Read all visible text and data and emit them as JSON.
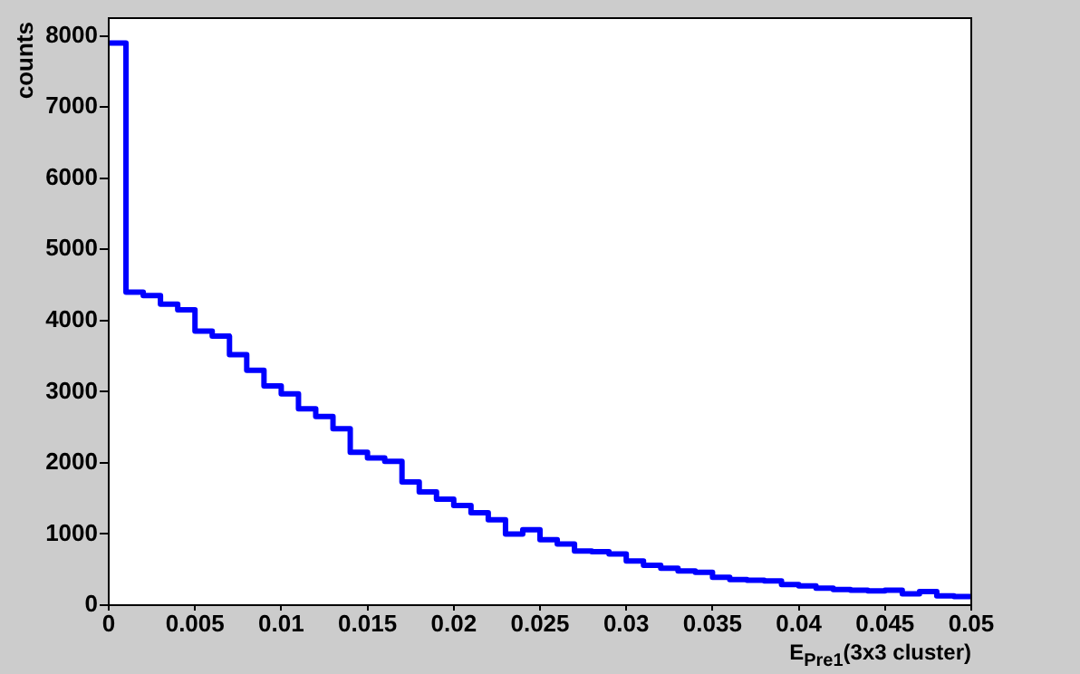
{
  "chart_data": {
    "type": "histogram",
    "xlabel": "E$_{Pre1}$(3x3 cluster)",
    "ylabel": "counts",
    "bins": [
      0,
      0.001,
      0.002,
      0.003,
      0.004,
      0.005,
      0.006,
      0.007,
      0.008,
      0.009,
      0.01,
      0.011,
      0.012,
      0.013,
      0.014,
      0.015,
      0.016,
      0.017,
      0.018,
      0.019,
      0.02,
      0.021,
      0.022,
      0.023,
      0.024,
      0.025,
      0.026,
      0.027,
      0.028,
      0.029,
      0.03,
      0.031,
      0.032,
      0.033,
      0.034,
      0.035,
      0.036,
      0.037,
      0.038,
      0.039,
      0.04,
      0.041,
      0.042,
      0.043,
      0.044,
      0.045,
      0.046,
      0.047,
      0.048,
      0.049,
      0.05
    ],
    "values": [
      7900,
      4400,
      4350,
      4230,
      4150,
      3850,
      3780,
      3520,
      3300,
      3080,
      2970,
      2760,
      2650,
      2480,
      2150,
      2070,
      2020,
      1730,
      1590,
      1490,
      1400,
      1300,
      1200,
      1000,
      1060,
      920,
      860,
      760,
      750,
      720,
      620,
      560,
      520,
      480,
      460,
      390,
      360,
      350,
      340,
      290,
      270,
      240,
      220,
      210,
      200,
      210,
      160,
      190,
      130,
      120
    ],
    "color": "#0000ff",
    "xlim": [
      0,
      0.05
    ],
    "xticks": [
      0,
      0.005,
      0.01,
      0.015,
      0.02,
      0.025,
      0.03,
      0.035,
      0.04,
      0.045,
      0.05
    ],
    "ylim": [
      0,
      8250
    ],
    "yticks": [
      0,
      1000,
      2000,
      3000,
      4000,
      5000,
      6000,
      7000,
      8000
    ],
    "grid": false,
    "legend": false
  }
}
